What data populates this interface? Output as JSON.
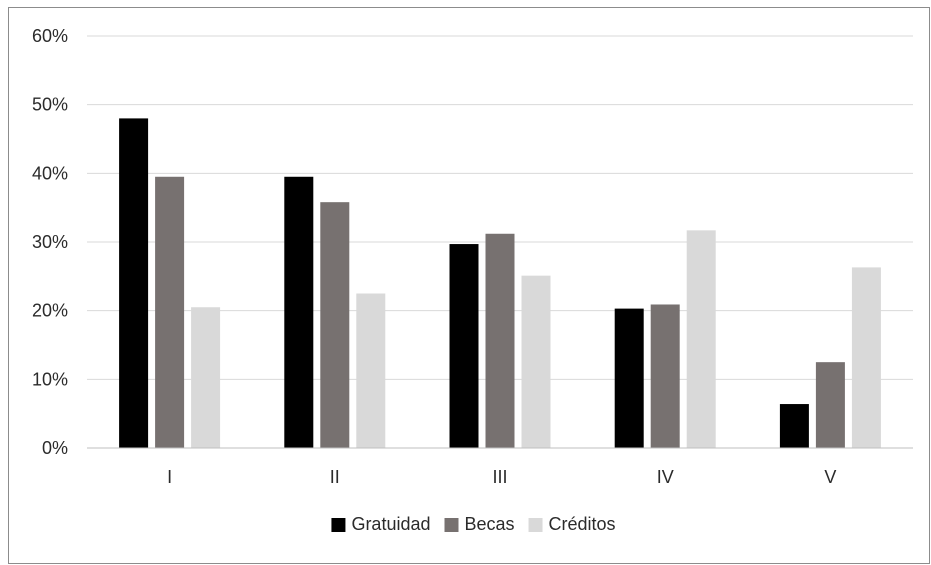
{
  "chart_data": {
    "type": "bar",
    "categories": [
      "I",
      "II",
      "III",
      "IV",
      "V"
    ],
    "series": [
      {
        "name": "Gratuidad",
        "values": [
          48,
          39.5,
          29.7,
          20.3,
          6.4
        ],
        "color": "#000000"
      },
      {
        "name": "Becas",
        "values": [
          39.5,
          35.8,
          31.2,
          20.9,
          12.5
        ],
        "color": "#777170"
      },
      {
        "name": "Créditos",
        "values": [
          20.5,
          22.5,
          25.1,
          31.7,
          26.3
        ],
        "color": "#d9d9d9"
      }
    ],
    "ylim": [
      0,
      60
    ],
    "yticks": [
      0,
      10,
      20,
      30,
      40,
      50,
      60
    ],
    "ytick_labels": [
      "0%",
      "10%",
      "20%",
      "30%",
      "40%",
      "50%",
      "60%"
    ],
    "grid": true,
    "legend_position": "bottom",
    "gridline_color": "#d9d9d9",
    "axis_color": "#bfbfbf"
  }
}
